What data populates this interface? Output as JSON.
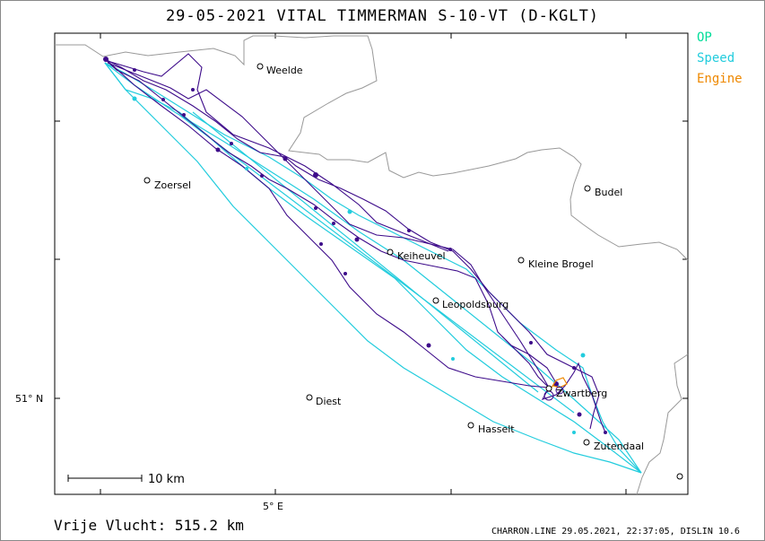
{
  "title": "29-05-2021   VITAL TIMMERMAN   S-10-VT (D-KGLT)",
  "legend": [
    {
      "label": "OP",
      "color": "#00dd99"
    },
    {
      "label": "Speed",
      "color": "#22ccdd"
    },
    {
      "label": "Engine",
      "color": "#ee8800"
    }
  ],
  "places": [
    {
      "name": "Weelde"
    },
    {
      "name": "Zoersel"
    },
    {
      "name": "Budel"
    },
    {
      "name": "Kleine Brogel"
    },
    {
      "name": "Keiheuvel"
    },
    {
      "name": "Leopoldsburg"
    },
    {
      "name": "Zwartberg"
    },
    {
      "name": "Diest"
    },
    {
      "name": "Hasselt"
    },
    {
      "name": "Zutendaal"
    }
  ],
  "axes": {
    "lon_label": "5° E",
    "lat_label": "51° N"
  },
  "scale_bar": "10 km",
  "footer": {
    "distance": "Vrije Vlucht:  515.2 km",
    "info": "CHARRON.LINE 29.05.2021, 22:37:05, DISLIN 10.6"
  },
  "colors": {
    "track": "#3d0b8a",
    "speed": "#22ccdd",
    "engine": "#ee8800",
    "border": "#999999"
  }
}
